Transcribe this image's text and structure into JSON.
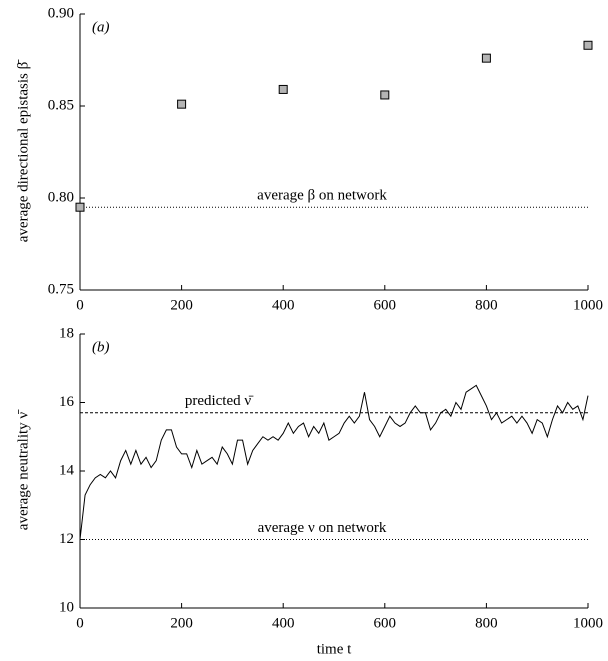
{
  "chart_data": [
    {
      "type": "scatter",
      "panel_label": "(a)",
      "ylabel": "average directional epistasis β̄",
      "x": [
        0,
        200,
        400,
        600,
        800,
        1000
      ],
      "values": [
        0.795,
        0.851,
        0.859,
        0.856,
        0.876,
        0.883
      ],
      "color": "#b4b4b4",
      "xlim": [
        0,
        1000
      ],
      "xticks": [
        0,
        200,
        400,
        600,
        800,
        1000
      ],
      "ylim": [
        0.75,
        0.9
      ],
      "yticks": [
        {
          "value": 0.75,
          "label": "0.75"
        },
        {
          "value": 0.8,
          "label": "0.80"
        },
        {
          "value": 0.85,
          "label": "0.85"
        },
        {
          "value": 0.9,
          "label": "0.90"
        }
      ],
      "reference_lines": [
        {
          "label": "average β on network",
          "y": 0.795,
          "style": "dotted"
        }
      ]
    },
    {
      "type": "line",
      "panel_label": "(b)",
      "xlabel": "time t",
      "ylabel": "average neutrality ν̄",
      "x": [
        0,
        10,
        20,
        30,
        40,
        50,
        60,
        70,
        80,
        90,
        100,
        110,
        120,
        130,
        140,
        150,
        160,
        170,
        180,
        190,
        200,
        210,
        220,
        230,
        240,
        250,
        260,
        270,
        280,
        290,
        300,
        310,
        320,
        330,
        340,
        350,
        360,
        370,
        380,
        390,
        400,
        410,
        420,
        430,
        440,
        450,
        460,
        470,
        480,
        490,
        500,
        510,
        520,
        530,
        540,
        550,
        560,
        570,
        580,
        590,
        600,
        610,
        620,
        630,
        640,
        650,
        660,
        670,
        680,
        690,
        700,
        710,
        720,
        730,
        740,
        750,
        760,
        770,
        780,
        790,
        800,
        810,
        820,
        830,
        840,
        850,
        860,
        870,
        880,
        890,
        900,
        910,
        920,
        930,
        940,
        950,
        960,
        970,
        980,
        990,
        1000
      ],
      "values": [
        12.0,
        13.3,
        13.6,
        13.8,
        13.9,
        13.8,
        14.0,
        13.8,
        14.3,
        14.6,
        14.2,
        14.6,
        14.2,
        14.4,
        14.1,
        14.3,
        14.9,
        15.2,
        15.2,
        14.7,
        14.5,
        14.5,
        14.1,
        14.6,
        14.2,
        14.3,
        14.4,
        14.2,
        14.7,
        14.5,
        14.2,
        14.9,
        14.9,
        14.2,
        14.6,
        14.8,
        15.0,
        14.9,
        15.0,
        14.9,
        15.1,
        15.4,
        15.1,
        15.3,
        15.4,
        15.0,
        15.3,
        15.1,
        15.4,
        14.9,
        15.0,
        15.1,
        15.4,
        15.6,
        15.4,
        15.6,
        16.3,
        15.5,
        15.3,
        15.0,
        15.3,
        15.6,
        15.4,
        15.3,
        15.4,
        15.7,
        15.9,
        15.7,
        15.7,
        15.2,
        15.4,
        15.7,
        15.8,
        15.6,
        16.0,
        15.8,
        16.3,
        16.4,
        16.5,
        16.2,
        15.9,
        15.5,
        15.7,
        15.4,
        15.5,
        15.6,
        15.4,
        15.6,
        15.4,
        15.1,
        15.5,
        15.4,
        15.0,
        15.5,
        15.9,
        15.7,
        16.0,
        15.8,
        15.9,
        15.5,
        16.2
      ],
      "color": "#000000",
      "xlim": [
        0,
        1000
      ],
      "xticks": [
        0,
        200,
        400,
        600,
        800,
        1000
      ],
      "ylim": [
        10,
        18
      ],
      "yticks": [
        10,
        12,
        14,
        16,
        18
      ],
      "reference_lines": [
        {
          "label": "predicted ν̄",
          "y": 15.7,
          "style": "dashed"
        },
        {
          "label": "average ν on network",
          "y": 12,
          "style": "dotted"
        }
      ]
    }
  ]
}
